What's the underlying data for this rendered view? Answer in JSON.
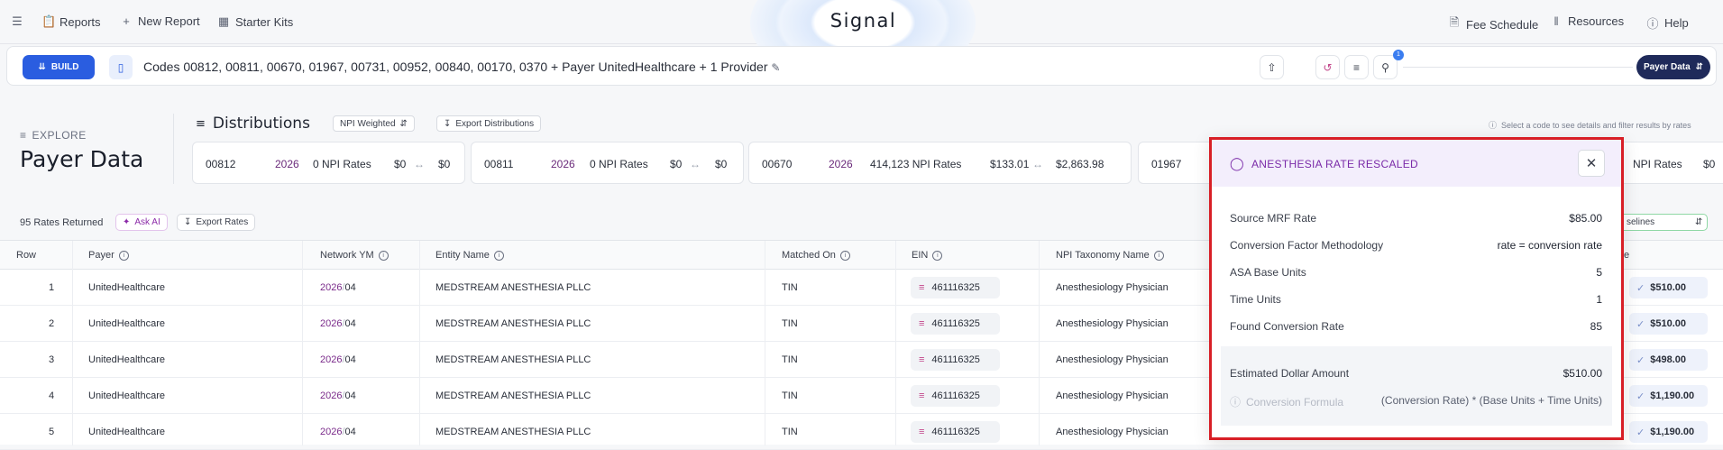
{
  "nav": {
    "reports": "Reports",
    "new_report": "New Report",
    "starter_kits": "Starter Kits",
    "brand": "Signal",
    "fee_schedule": "Fee Schedule",
    "resources": "Resources",
    "help": "Help"
  },
  "querybar": {
    "build_label": "BUILD",
    "query": "Codes 00812, 00811, 00670, 01967, 00731, 00952, 00840, 00170, 0370 + Payer UnitedHealthcare + 1 Provider",
    "filter_badge": "1",
    "data_source": "Payer Data"
  },
  "explore": {
    "label": "EXPLORE",
    "title": "Payer Data",
    "distributions_title": "Distributions",
    "weighting": "NPI Weighted",
    "export_distributions": "Export Distributions",
    "hint": "Select a code to see details and filter results by rates"
  },
  "distribution_cards": [
    {
      "code": "00812",
      "year": "2026",
      "count": "0 NPI Rates",
      "min": "$0",
      "max": "$0"
    },
    {
      "code": "00811",
      "year": "2026",
      "count": "0 NPI Rates",
      "min": "$0",
      "max": "$0"
    },
    {
      "code": "00670",
      "year": "2026",
      "count": "414,123 NPI Rates",
      "min": "$133.01",
      "max": "$2,863.98"
    },
    {
      "code": "01967",
      "year": "",
      "count": "",
      "min": "",
      "max": ""
    },
    {
      "code": "",
      "year": "",
      "count": "NPI Rates",
      "min": "$0",
      "max": ""
    }
  ],
  "table_meta": {
    "rates_count": "95",
    "rates_label": "Rates Returned",
    "ask_ai": "Ask AI",
    "export_rates": "Export Rates",
    "baselines": "selines"
  },
  "columns": [
    "Row",
    "Payer",
    "Network YM",
    "Entity Name",
    "Matched On",
    "EIN",
    "NPI Taxonomy Name",
    "e"
  ],
  "rows": [
    {
      "row": "1",
      "payer": "UnitedHealthcare",
      "ym_year": "2026",
      "ym_month": "04",
      "entity": "MEDSTREAM ANESTHESIA PLLC",
      "matched": "TIN",
      "ein": "461116325",
      "taxonomy": "Anesthesiology Physician",
      "amount": "$510.00"
    },
    {
      "row": "2",
      "payer": "UnitedHealthcare",
      "ym_year": "2026",
      "ym_month": "04",
      "entity": "MEDSTREAM ANESTHESIA PLLC",
      "matched": "TIN",
      "ein": "461116325",
      "taxonomy": "Anesthesiology Physician",
      "amount": "$510.00"
    },
    {
      "row": "3",
      "payer": "UnitedHealthcare",
      "ym_year": "2026",
      "ym_month": "04",
      "entity": "MEDSTREAM ANESTHESIA PLLC",
      "matched": "TIN",
      "ein": "461116325",
      "taxonomy": "Anesthesiology Physician",
      "amount": "$498.00"
    },
    {
      "row": "4",
      "payer": "UnitedHealthcare",
      "ym_year": "2026",
      "ym_month": "04",
      "entity": "MEDSTREAM ANESTHESIA PLLC",
      "matched": "TIN",
      "ein": "461116325",
      "taxonomy": "Anesthesiology Physician",
      "amount": "$1,190.00"
    },
    {
      "row": "5",
      "payer": "UnitedHealthcare",
      "ym_year": "2026",
      "ym_month": "04",
      "entity": "MEDSTREAM ANESTHESIA PLLC",
      "matched": "TIN",
      "ein": "461116325",
      "taxonomy": "Anesthesiology Physician",
      "amount": "$1,190.00"
    }
  ],
  "popover": {
    "title": "ANESTHESIA RATE RESCALED",
    "fields": [
      {
        "label": "Source MRF Rate",
        "value": "$85.00"
      },
      {
        "label": "Conversion Factor Methodology",
        "value": "rate = conversion rate"
      },
      {
        "label": "ASA Base Units",
        "value": "5"
      },
      {
        "label": "Time Units",
        "value": "1"
      },
      {
        "label": "Found Conversion Rate",
        "value": "85"
      }
    ],
    "estimate_label": "Estimated Dollar Amount",
    "estimate_value": "$510.00",
    "formula_label": "Conversion Formula",
    "formula": "(Conversion Rate) * (Base Units + Time Units)"
  },
  "colors": {
    "accent": "#2a5de0",
    "highlight": "#d81f26",
    "purple": "#7a2aa8"
  }
}
